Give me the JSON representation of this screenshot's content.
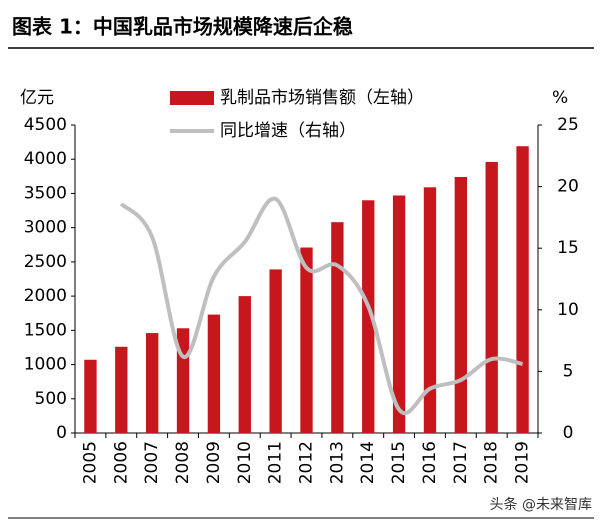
{
  "chart_data": {
    "type": "bar_line",
    "title": "图表 1：中国乳品市场规模降速后企稳",
    "y_unit": "亿元",
    "y2_unit": "%",
    "watermark": "头条 @未来智库",
    "categories": [
      "2005",
      "2006",
      "2007",
      "2008",
      "2009",
      "2010",
      "2011",
      "2012",
      "2013",
      "2014",
      "2015",
      "2016",
      "2017",
      "2018",
      "2019"
    ],
    "series": [
      {
        "name": "乳制品市场销售额（左轴）",
        "color": "#c8161d",
        "kind": "bar",
        "values": [
          1070,
          1260,
          1460,
          1530,
          1730,
          2000,
          2390,
          2710,
          3080,
          3400,
          3470,
          3590,
          3740,
          3960,
          4190
        ]
      },
      {
        "name": "同比增速（右轴）",
        "color": "#bfbfbf",
        "kind": "line",
        "axis": "y2",
        "values": [
          null,
          18.6,
          15.9,
          6.2,
          12.7,
          15.5,
          19.0,
          13.4,
          13.6,
          10.3,
          1.9,
          3.6,
          4.3,
          6.0,
          5.6
        ]
      }
    ],
    "ylim": [
      0,
      4500
    ],
    "yticks": [
      0,
      500,
      1000,
      1500,
      2000,
      2500,
      3000,
      3500,
      4000,
      4500
    ],
    "y2lim": [
      0,
      25
    ],
    "y2ticks": [
      0,
      5,
      10,
      15,
      20,
      25
    ],
    "grid": false
  }
}
